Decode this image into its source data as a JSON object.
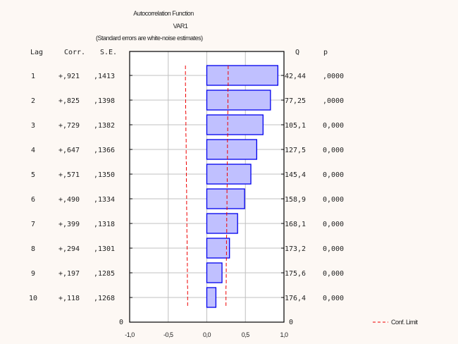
{
  "chart_data": {
    "type": "bar",
    "orientation": "horizontal",
    "title": "Autocorrelation Function",
    "subtitle": "VAR1",
    "note": "(Standard errors are white-noise estimates)",
    "column_headers": {
      "lag": "Lag",
      "corr": "Corr.",
      "se": "S.E.",
      "q": "Q",
      "p": "p"
    },
    "rows": [
      {
        "lag": "1",
        "corr": "+,921",
        "se": ",1413",
        "q": "42,44",
        "p": ",0000"
      },
      {
        "lag": "2",
        "corr": "+,825",
        "se": ",1398",
        "q": "77,25",
        "p": ",0000"
      },
      {
        "lag": "3",
        "corr": "+,729",
        "se": ",1382",
        "q": "105,1",
        "p": "0,000"
      },
      {
        "lag": "4",
        "corr": "+,647",
        "se": ",1366",
        "q": "127,5",
        "p": "0,000"
      },
      {
        "lag": "5",
        "corr": "+,571",
        "se": ",1350",
        "q": "145,4",
        "p": "0,000"
      },
      {
        "lag": "6",
        "corr": "+,490",
        "se": ",1334",
        "q": "158,9",
        "p": "0,000"
      },
      {
        "lag": "7",
        "corr": "+,399",
        "se": ",1318",
        "q": "168,1",
        "p": "0,000"
      },
      {
        "lag": "8",
        "corr": "+,294",
        "se": ",1301",
        "q": "173,2",
        "p": "0,000"
      },
      {
        "lag": "9",
        "corr": "+,197",
        "se": ",1285",
        "q": "175,6",
        "p": "0,000"
      },
      {
        "lag": "10",
        "corr": "+,118",
        "se": ",1268",
        "q": "176,4",
        "p": "0,000"
      }
    ],
    "values": [
      0.921,
      0.825,
      0.729,
      0.647,
      0.571,
      0.49,
      0.399,
      0.294,
      0.197,
      0.118
    ],
    "standard_errors": [
      0.1413,
      0.1398,
      0.1382,
      0.1366,
      0.135,
      0.1334,
      0.1318,
      0.1301,
      0.1285,
      0.1268
    ],
    "xlim": [
      -1.0,
      1.0
    ],
    "xticks": [
      "-1,0",
      "-0,5",
      "0,0",
      "0,5",
      "1,0"
    ],
    "xtick_values": [
      -1,
      -0.5,
      0,
      0.5,
      1
    ],
    "bottom_left_label": "0",
    "bottom_right_label": "0",
    "legend": {
      "label": "Conf. Limit",
      "placement": "bottom-right"
    },
    "grid": true,
    "colors": {
      "bar_fill": "#c0c0ff",
      "bar_stroke": "#0000ee",
      "conf_limit": "#ee0000",
      "grid": "#c0c0c0",
      "background": "#fdf8f4"
    }
  }
}
